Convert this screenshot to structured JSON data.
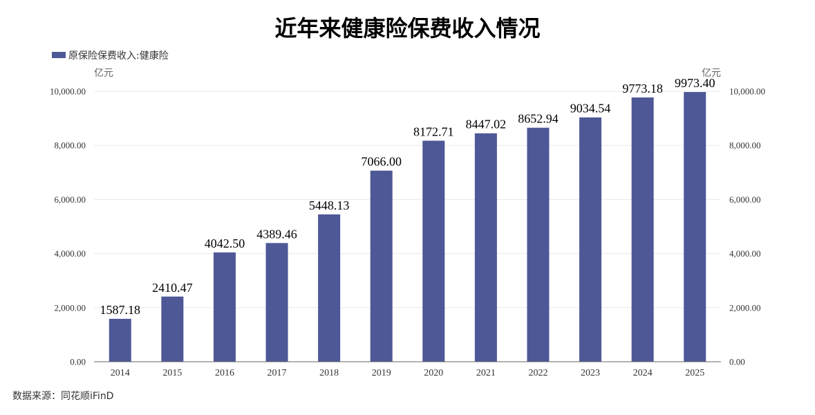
{
  "chart_data": {
    "type": "bar",
    "title": "近年来健康险保费收入情况",
    "legend": {
      "label": "原保险保费收入:健康险",
      "position": "top-left"
    },
    "y_unit_left": "亿元",
    "y_unit_right": "亿元",
    "categories": [
      "2014",
      "2015",
      "2016",
      "2017",
      "2018",
      "2019",
      "2020",
      "2021",
      "2022",
      "2023",
      "2024",
      "2025"
    ],
    "series": [
      {
        "name": "原保险保费收入:健康险",
        "values": [
          1587.18,
          2410.47,
          4042.5,
          4389.46,
          5448.13,
          7066.0,
          8172.71,
          8447.02,
          8652.94,
          9034.54,
          9773.18,
          9973.4
        ],
        "value_labels": [
          "1587.18",
          "2410.47",
          "4042.50",
          "4389.46",
          "5448.13",
          "7066.00",
          "8172.71",
          "8447.02",
          "8652.94",
          "9034.54",
          "9773.18",
          "9973.40"
        ],
        "color": "#4e5897"
      }
    ],
    "ylim": [
      0,
      10000
    ],
    "y_ticks": [
      0,
      2000,
      4000,
      6000,
      8000,
      10000
    ],
    "y_tick_labels": [
      "0.00",
      "2,000.00",
      "4,000.00",
      "6,000.00",
      "8,000.00",
      "10,000.00"
    ],
    "grid": true,
    "colors": {
      "bar": "#4e5897",
      "grid": "#e8e8e8",
      "axis": "#666666"
    },
    "source": "数据来源：同花顺iFinD"
  }
}
